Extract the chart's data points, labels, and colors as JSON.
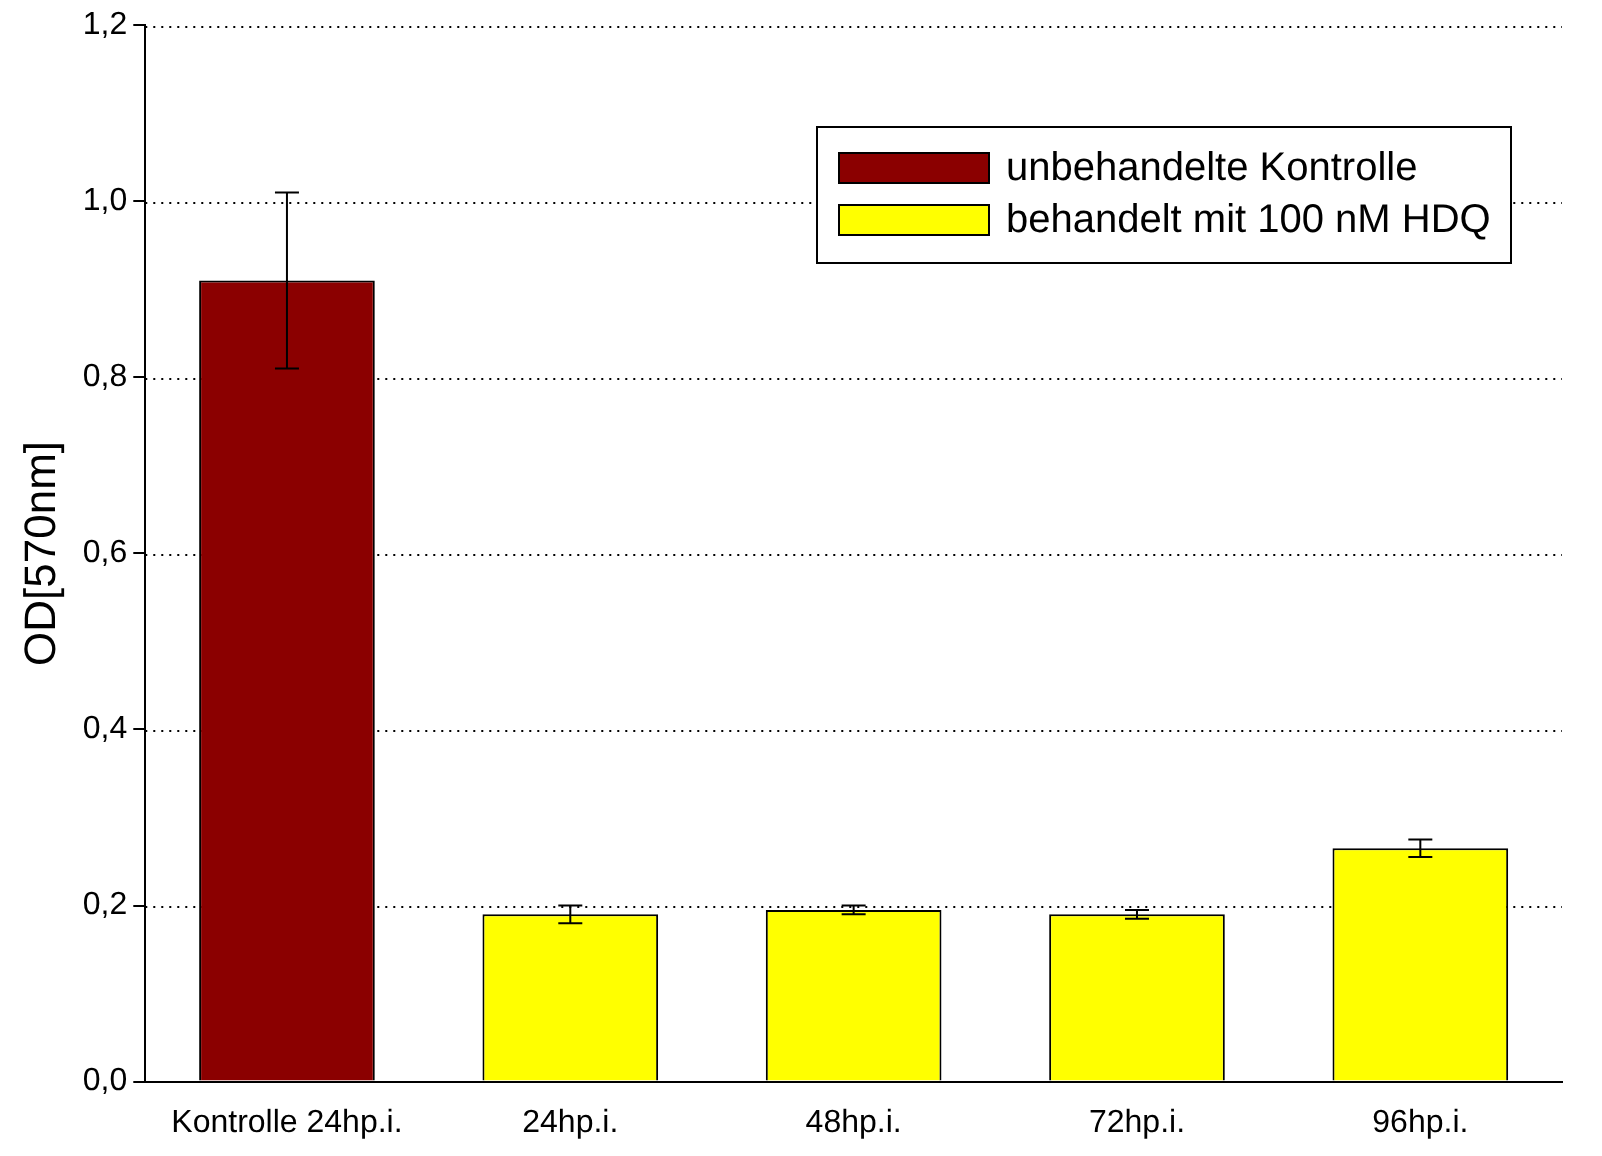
{
  "chart_data": {
    "type": "bar",
    "ylabel": "OD[570nm]",
    "categories": [
      "Kontrolle 24hp.i.",
      "24hp.i.",
      "48hp.i.",
      "72hp.i.",
      "96hp.i."
    ],
    "series": [
      {
        "name": "unbehandelte Kontrolle",
        "color": "#8b0000",
        "values": [
          0.91,
          null,
          null,
          null,
          null
        ],
        "errors": [
          0.1,
          null,
          null,
          null,
          null
        ]
      },
      {
        "name": "behandelt mit 100 nM HDQ",
        "color": "#ffff00",
        "values": [
          null,
          0.19,
          0.195,
          0.19,
          0.265
        ],
        "errors": [
          null,
          0.01,
          0.005,
          0.005,
          0.01
        ]
      }
    ],
    "ylim": [
      0,
      1.2
    ],
    "yticks": [
      {
        "value": 0,
        "label": "0,0"
      },
      {
        "value": 0.2,
        "label": "0,2"
      },
      {
        "value": 0.4,
        "label": "0,4"
      },
      {
        "value": 0.6,
        "label": "0,6"
      },
      {
        "value": 0.8,
        "label": "0,8"
      },
      {
        "value": 1,
        "label": "1,0"
      },
      {
        "value": 1.2,
        "label": "1,2"
      }
    ],
    "grid": "y",
    "legend": "top right"
  }
}
